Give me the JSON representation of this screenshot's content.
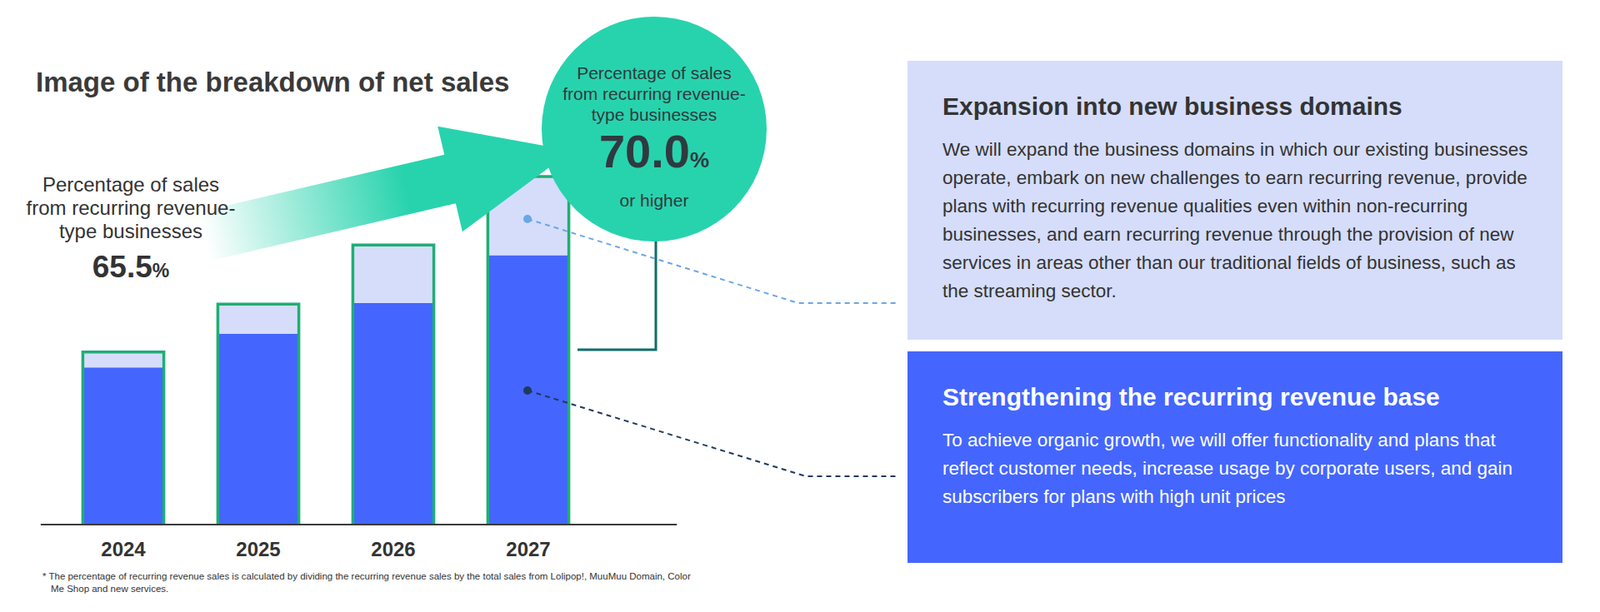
{
  "chart_data": {
    "type": "bar",
    "title": "Image of the breakdown of net sales",
    "categories": [
      "2024",
      "2025",
      "2026",
      "2027"
    ],
    "stacked": true,
    "series": [
      {
        "name": "Strengthening the recurring revenue base",
        "color": "#4466ff",
        "values": [
          155,
          188,
          218,
          265
        ],
        "description": "To achieve organic growth, we will offer functionality and plans that reflect customer needs, increase usage by corporate users, and gain subscribers for plans with high unit prices"
      },
      {
        "name": "Expansion into new business domains",
        "color": "#d5ddfa",
        "values": [
          15,
          29,
          57,
          77
        ],
        "description": "We will expand the business domains in which our existing businesses operate, embark on new challenges to earn recurring revenue, provide plans with recurring revenue qualities even within non-recurring businesses, and earn recurring revenue through the provision of new services in areas other than our traditional fields of business, such as the streaming sector."
      }
    ],
    "ylim": [
      0,
      400
    ],
    "tick_labels": "x",
    "grid": false,
    "recurring_share": [
      {
        "label_lines": [
          "Percentage of sales",
          "from recurring revenue-",
          "type businesses"
        ],
        "value": 65.5,
        "unit": "%"
      },
      {
        "label_lines": [
          "Percentage of sales",
          "from recurring revenue-",
          "type businesses"
        ],
        "value": 70.0,
        "value_label": "70.0",
        "unit": "%",
        "qualifier": "or higher"
      }
    ],
    "footnote": "* The percentage of recurring revenue sales is calculated by dividing the recurring revenue sales by the total sales from Lolipop!, MuuMuu Domain, Color Me Shop and new services."
  }
}
